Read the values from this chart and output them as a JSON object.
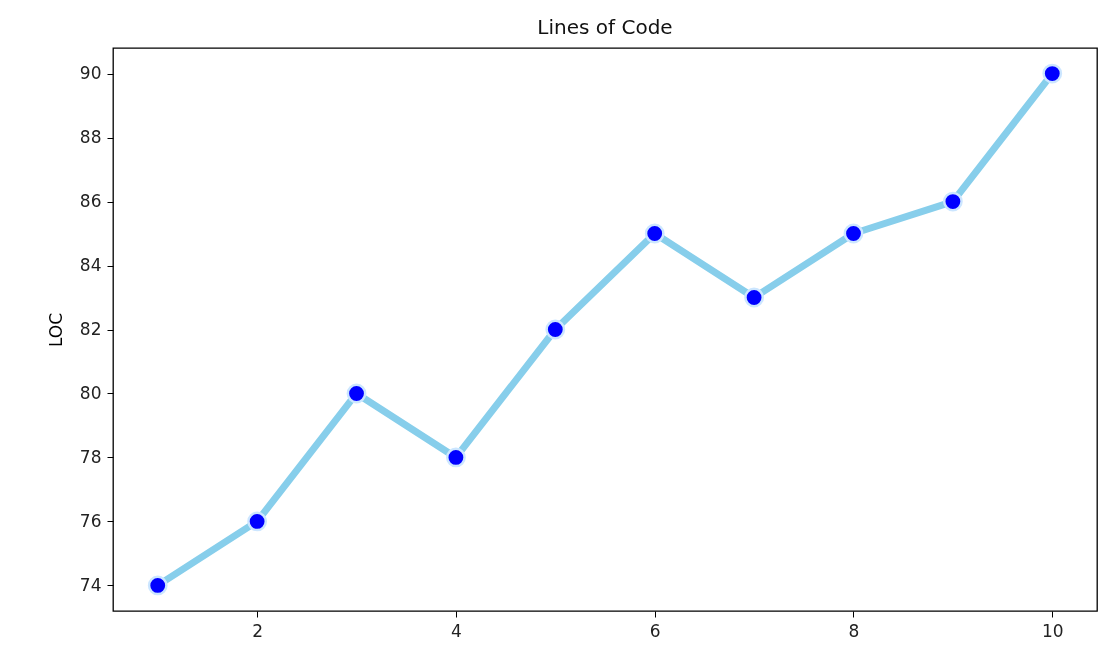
{
  "chart_data": {
    "type": "line",
    "title": "Lines of Code",
    "ylabel": "LOC",
    "x": [
      1,
      2,
      3,
      4,
      5,
      6,
      7,
      8,
      9,
      10
    ],
    "series": [
      {
        "color": "#87ceeb",
        "values": [
          74,
          76,
          80,
          78,
          82,
          85,
          83,
          85,
          86,
          90
        ]
      }
    ],
    "xlim": [
      0.55,
      10.45
    ],
    "xticks": [
      2,
      4,
      6,
      8,
      10
    ],
    "ylim": [
      73.2,
      90.8
    ],
    "yticks": [
      74,
      76,
      78,
      80,
      82,
      84,
      86,
      88,
      90
    ],
    "marker": "circle",
    "grid": false,
    "line_style": "solid",
    "legend": false
  }
}
